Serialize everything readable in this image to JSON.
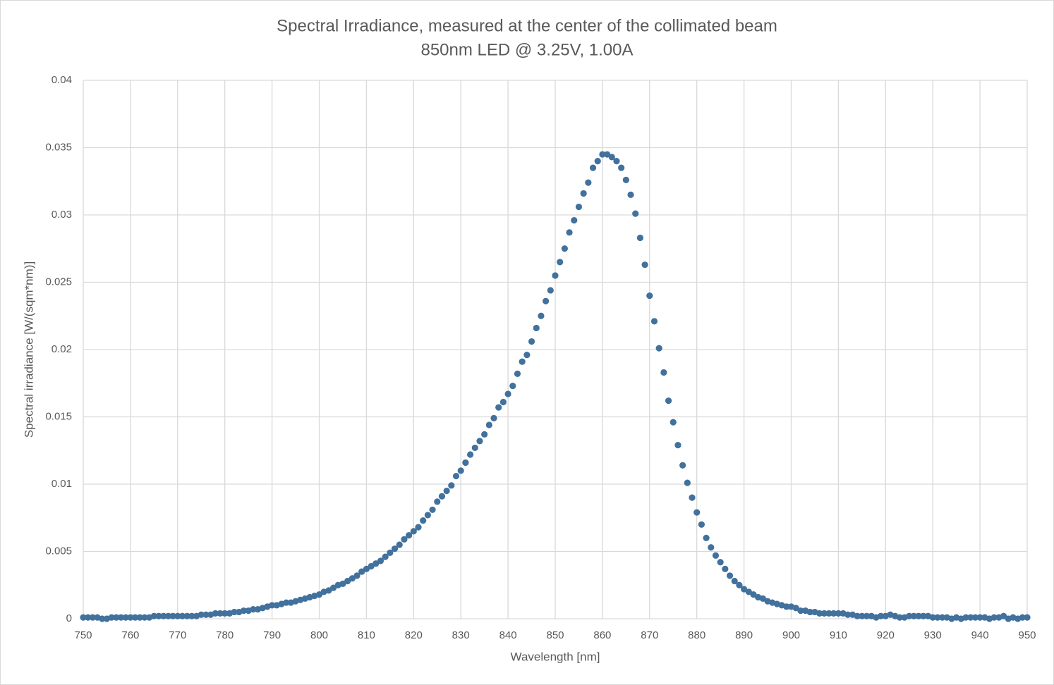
{
  "chart_data": {
    "type": "scatter",
    "title": "Spectral Irradiance, measured at the center of the collimated beam",
    "subtitle": "850nm LED @ 3.25V, 1.00A",
    "x_label": "Wavelength [nm]",
    "y_label": "Spectral irradiance [W/(sqm*nm)]",
    "xlim": [
      750,
      950
    ],
    "xticks": [
      750,
      760,
      770,
      780,
      790,
      800,
      810,
      820,
      830,
      840,
      850,
      860,
      870,
      880,
      890,
      900,
      910,
      920,
      930,
      940,
      950
    ],
    "ylim": [
      0,
      0.04
    ],
    "yticks": [
      0,
      0.005,
      0.01,
      0.015,
      0.02,
      0.025,
      0.03,
      0.035,
      0.04
    ],
    "grid": true,
    "x": [
      750,
      751,
      752,
      753,
      754,
      755,
      756,
      757,
      758,
      759,
      760,
      761,
      762,
      763,
      764,
      765,
      766,
      767,
      768,
      769,
      770,
      771,
      772,
      773,
      774,
      775,
      776,
      777,
      778,
      779,
      780,
      781,
      782,
      783,
      784,
      785,
      786,
      787,
      788,
      789,
      790,
      791,
      792,
      793,
      794,
      795,
      796,
      797,
      798,
      799,
      800,
      801,
      802,
      803,
      804,
      805,
      806,
      807,
      808,
      809,
      810,
      811,
      812,
      813,
      814,
      815,
      816,
      817,
      818,
      819,
      820,
      821,
      822,
      823,
      824,
      825,
      826,
      827,
      828,
      829,
      830,
      831,
      832,
      833,
      834,
      835,
      836,
      837,
      838,
      839,
      840,
      841,
      842,
      843,
      844,
      845,
      846,
      847,
      848,
      849,
      850,
      851,
      852,
      853,
      854,
      855,
      856,
      857,
      858,
      859,
      860,
      861,
      862,
      863,
      864,
      865,
      866,
      867,
      868,
      869,
      870,
      871,
      872,
      873,
      874,
      875,
      876,
      877,
      878,
      879,
      880,
      881,
      882,
      883,
      884,
      885,
      886,
      887,
      888,
      889,
      890,
      891,
      892,
      893,
      894,
      895,
      896,
      897,
      898,
      899,
      900,
      901,
      902,
      903,
      904,
      905,
      906,
      907,
      908,
      909,
      910,
      911,
      912,
      913,
      914,
      915,
      916,
      917,
      918,
      919,
      920,
      921,
      922,
      923,
      924,
      925,
      926,
      927,
      928,
      929,
      930,
      931,
      932,
      933,
      934,
      935,
      936,
      937,
      938,
      939,
      940,
      941,
      942,
      943,
      944,
      945,
      946,
      947,
      948,
      949,
      950
    ],
    "series": [
      {
        "color": "#41719c",
        "values": [
          0.0001,
          0.0001,
          0.0001,
          0.0001,
          0,
          0,
          0.0001,
          0.0001,
          0.0001,
          0.0001,
          0.0001,
          0.0001,
          0.0001,
          0.0001,
          0.0001,
          0.0002,
          0.0002,
          0.0002,
          0.0002,
          0.0002,
          0.0002,
          0.0002,
          0.0002,
          0.0002,
          0.0002,
          0.0003,
          0.0003,
          0.0003,
          0.0004,
          0.0004,
          0.0004,
          0.0004,
          0.0005,
          0.0005,
          0.0006,
          0.0006,
          0.0007,
          0.0007,
          0.0008,
          0.0009,
          0.001,
          0.001,
          0.0011,
          0.0012,
          0.0012,
          0.0013,
          0.0014,
          0.0015,
          0.0016,
          0.0017,
          0.0018,
          0.002,
          0.0021,
          0.0023,
          0.0025,
          0.0026,
          0.0028,
          0.003,
          0.0032,
          0.0035,
          0.0037,
          0.0039,
          0.0041,
          0.0043,
          0.0046,
          0.0049,
          0.0052,
          0.0055,
          0.0059,
          0.0062,
          0.0065,
          0.0068,
          0.0073,
          0.0077,
          0.0081,
          0.0087,
          0.0091,
          0.0095,
          0.0099,
          0.0106,
          0.011,
          0.0116,
          0.0122,
          0.0127,
          0.0132,
          0.0137,
          0.0144,
          0.0149,
          0.0157,
          0.0161,
          0.0167,
          0.0173,
          0.0182,
          0.0191,
          0.0196,
          0.0206,
          0.0216,
          0.0225,
          0.0236,
          0.0244,
          0.0255,
          0.0265,
          0.0275,
          0.0287,
          0.0296,
          0.0306,
          0.0316,
          0.0324,
          0.0335,
          0.034,
          0.0345,
          0.0345,
          0.0343,
          0.034,
          0.0335,
          0.0326,
          0.0315,
          0.0301,
          0.0283,
          0.0263,
          0.024,
          0.0221,
          0.0201,
          0.0183,
          0.0162,
          0.0146,
          0.0129,
          0.0114,
          0.0101,
          0.009,
          0.0079,
          0.007,
          0.006,
          0.0053,
          0.0047,
          0.0042,
          0.0037,
          0.0032,
          0.0028,
          0.0025,
          0.0022,
          0.002,
          0.0018,
          0.0016,
          0.0015,
          0.0013,
          0.0012,
          0.0011,
          0.001,
          0.0009,
          0.0009,
          0.0008,
          0.0006,
          0.0006,
          0.0005,
          0.0005,
          0.0004,
          0.0004,
          0.0004,
          0.0004,
          0.0004,
          0.0004,
          0.0003,
          0.0003,
          0.0002,
          0.0002,
          0.0002,
          0.0002,
          0.0001,
          0.0002,
          0.0002,
          0.0003,
          0.0002,
          0.0001,
          0.0001,
          0.0002,
          0.0002,
          0.0002,
          0.0002,
          0.0002,
          0.0001,
          0.0001,
          0.0001,
          0.0001,
          0,
          0.0001,
          0,
          0.0001,
          0.0001,
          0.0001,
          0.0001,
          0.0001,
          0,
          0.0001,
          0.0001,
          0.0002,
          0,
          0.0001,
          0,
          0.0001,
          0.0001
        ]
      }
    ]
  }
}
